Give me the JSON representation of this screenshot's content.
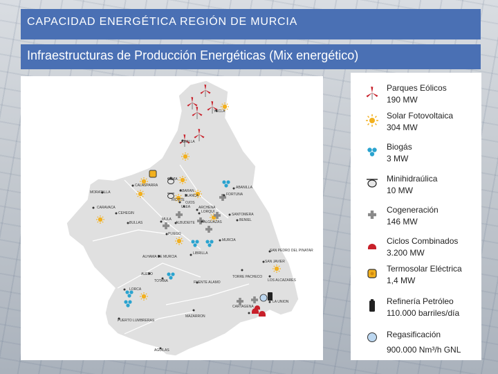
{
  "header": {
    "title": "CAPACIDAD ENERGÉTICA REGIÓN DE MURCIA",
    "subtitle": "Infraestructuras de Producción Energéticas (Mix energético)"
  },
  "colors": {
    "header_bg": "#4a70b4",
    "eolico": "#c8202a",
    "solar": "#f2b01e",
    "biogas": "#2aa3cf",
    "cogeneracion": "#8a8a8a",
    "ciclos": "#c8202a",
    "gnl": "#bcd7f0"
  },
  "legend": [
    {
      "icon": "wind-turbine-icon",
      "name": "Parques Eólicos",
      "value": "190 MW"
    },
    {
      "icon": "sun-icon",
      "name": "Solar Fotovoltaica",
      "value": "304 MW"
    },
    {
      "icon": "biogas-icon",
      "name": "Biogás",
      "value": "3 MW"
    },
    {
      "icon": "hydro-icon",
      "name": "Minihidraúlica",
      "value": "10 MW"
    },
    {
      "icon": "cogeneration-cross-icon",
      "name": "Cogeneración",
      "value": "146 MW"
    },
    {
      "icon": "combined-cycle-icon",
      "name": "Ciclos Combinados",
      "value": "3.200 MW"
    },
    {
      "icon": "thermosolar-icon",
      "name": "Termosolar Eléctrica",
      "value": "1,4 MW"
    },
    {
      "icon": "oil-refinery-icon",
      "name": "Refinería Petróleo",
      "value": "110.000 barriles/día"
    },
    {
      "icon": "regasification-icon",
      "name": "Regasificación",
      "value": "900.000 Nm³/h GNL"
    }
  ],
  "map": {
    "towns": [
      "YECLA",
      "JUMILLA",
      "CIEZA",
      "ABARAN",
      "BLANCA",
      "ABANILLA",
      "FORTUNA",
      "CALASPARRA",
      "MORATALLA",
      "CARAVACA",
      "CEHEGIN",
      "BULLAS",
      "MULA",
      "ALBUDEITE",
      "RICOTE",
      "OJOS",
      "ULEA",
      "ARCHENA",
      "LORQUI",
      "ALGUAZAS",
      "SANTOMERA",
      "BENIEL",
      "PLIEGO",
      "MURCIA",
      "LIBRILLA",
      "ALHAMA DE MURCIA",
      "SAN PEDRO DEL PINATAR",
      "SAN JAVIER",
      "TORRE PACHECO",
      "LOS ALCAZARES",
      "ALEDO",
      "TOTANA",
      "FUENTE ALAMO",
      "LORCA",
      "LA UNION",
      "CARTAGENA",
      "MAZARRON",
      "PUERTO LUMBRERAS",
      "AGUILAS"
    ]
  }
}
